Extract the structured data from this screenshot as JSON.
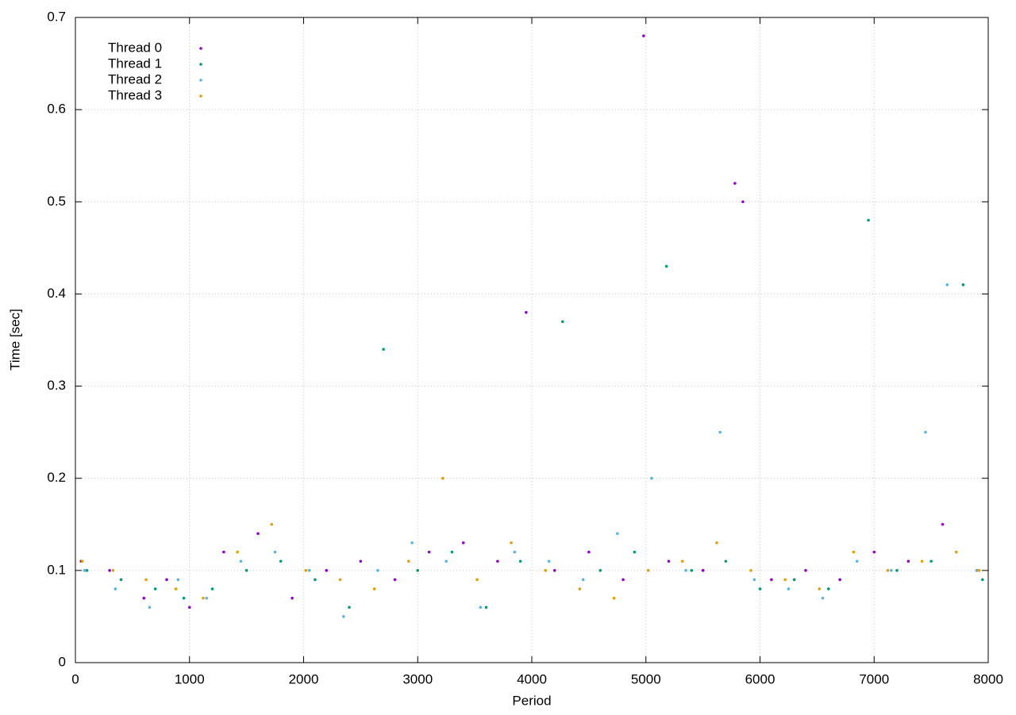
{
  "chart_data": {
    "type": "scatter",
    "xlabel": "Period",
    "ylabel": "Time [sec]",
    "xlim": [
      0,
      8000
    ],
    "ylim": [
      0,
      0.7
    ],
    "xticks": [
      0,
      1000,
      2000,
      3000,
      4000,
      5000,
      6000,
      7000,
      8000
    ],
    "yticks": [
      0,
      0.1,
      0.2,
      0.3,
      0.4,
      0.5,
      0.6,
      0.7
    ],
    "grid": true,
    "legend": "top-left",
    "series": [
      {
        "name": "Thread 0",
        "color": "#9400d3",
        "x": [
          50,
          300,
          600,
          800,
          1000,
          1300,
          1600,
          1900,
          2200,
          2500,
          2800,
          3100,
          3400,
          3700,
          3950,
          4200,
          4500,
          4800,
          4980,
          5200,
          5500,
          5780,
          5850,
          6100,
          6400,
          6700,
          7000,
          7300,
          7600,
          7900
        ],
        "values": [
          0.11,
          0.1,
          0.07,
          0.09,
          0.06,
          0.12,
          0.14,
          0.07,
          0.1,
          0.11,
          0.09,
          0.12,
          0.13,
          0.11,
          0.38,
          0.1,
          0.12,
          0.09,
          0.68,
          0.11,
          0.1,
          0.52,
          0.5,
          0.09,
          0.1,
          0.09,
          0.12,
          0.11,
          0.15,
          0.1
        ]
      },
      {
        "name": "Thread 1",
        "color": "#009e73",
        "x": [
          100,
          400,
          700,
          950,
          1200,
          1500,
          1800,
          2100,
          2400,
          2700,
          3000,
          3300,
          3600,
          3900,
          4270,
          4600,
          4900,
          5180,
          5400,
          5700,
          6000,
          6300,
          6600,
          6950,
          7200,
          7500,
          7780,
          7950
        ],
        "values": [
          0.1,
          0.09,
          0.08,
          0.07,
          0.08,
          0.1,
          0.11,
          0.09,
          0.06,
          0.34,
          0.1,
          0.12,
          0.06,
          0.11,
          0.37,
          0.1,
          0.12,
          0.43,
          0.1,
          0.11,
          0.08,
          0.09,
          0.08,
          0.48,
          0.1,
          0.11,
          0.41,
          0.09
        ]
      },
      {
        "name": "Thread 2",
        "color": "#56b4e9",
        "x": [
          80,
          350,
          650,
          900,
          1150,
          1450,
          1750,
          2050,
          2350,
          2650,
          2950,
          3250,
          3550,
          3850,
          4150,
          4450,
          4750,
          5050,
          5350,
          5650,
          5950,
          6250,
          6550,
          6850,
          7150,
          7450,
          7640,
          7900
        ],
        "values": [
          0.1,
          0.08,
          0.06,
          0.09,
          0.07,
          0.11,
          0.12,
          0.1,
          0.05,
          0.1,
          0.13,
          0.11,
          0.06,
          0.12,
          0.11,
          0.09,
          0.14,
          0.2,
          0.1,
          0.25,
          0.09,
          0.08,
          0.07,
          0.11,
          0.1,
          0.25,
          0.41,
          0.1
        ]
      },
      {
        "name": "Thread 3",
        "color": "#e69f00",
        "x": [
          60,
          330,
          620,
          880,
          1120,
          1420,
          1720,
          2020,
          2320,
          2620,
          2920,
          3220,
          3520,
          3820,
          4120,
          4420,
          4720,
          5020,
          5320,
          5620,
          5920,
          6220,
          6520,
          6820,
          7120,
          7420,
          7720,
          7920
        ],
        "values": [
          0.11,
          0.1,
          0.09,
          0.08,
          0.07,
          0.12,
          0.15,
          0.1,
          0.09,
          0.08,
          0.11,
          0.2,
          0.09,
          0.13,
          0.1,
          0.08,
          0.07,
          0.1,
          0.11,
          0.13,
          0.1,
          0.09,
          0.08,
          0.12,
          0.1,
          0.11,
          0.12,
          0.1
        ]
      }
    ]
  }
}
